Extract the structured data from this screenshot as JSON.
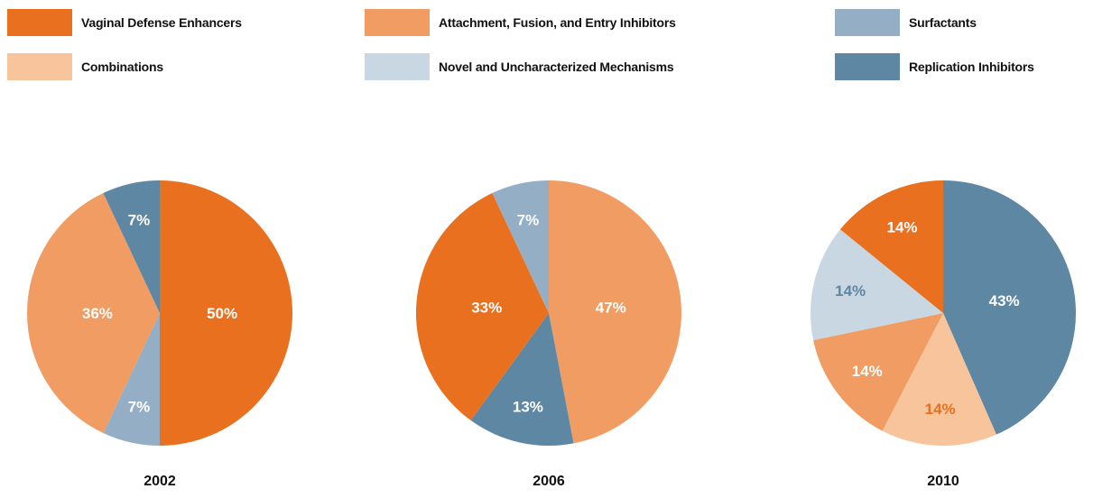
{
  "chart_data": {
    "type": "pie",
    "legend": [
      {
        "key": "vde",
        "label": "Vaginal Defense Enhancers",
        "color": "#E8701E"
      },
      {
        "key": "afe",
        "label": "Attachment, Fusion, and Entry Inhibitors",
        "color": "#F09C62"
      },
      {
        "key": "surf",
        "label": "Surfactants",
        "color": "#94AFC5"
      },
      {
        "key": "comb",
        "label": "Combinations",
        "color": "#F7C49C"
      },
      {
        "key": "novel",
        "label": "Novel and Uncharacterized Mechanisms",
        "color": "#C9D7E2"
      },
      {
        "key": "rep",
        "label": "Replication Inhibitors",
        "color": "#5E87A3"
      }
    ],
    "charts": [
      {
        "year": "2002",
        "slices": [
          {
            "key": "vde",
            "value": 50,
            "label": "50%",
            "label_color": "#ffffff"
          },
          {
            "key": "surf",
            "value": 7,
            "label": "7%",
            "label_color": "#ffffff"
          },
          {
            "key": "afe",
            "value": 36,
            "label": "36%",
            "label_color": "#ffffff"
          },
          {
            "key": "rep",
            "value": 7,
            "label": "7%",
            "label_color": "#ffffff"
          }
        ]
      },
      {
        "year": "2006",
        "slices": [
          {
            "key": "afe",
            "value": 47,
            "label": "47%",
            "label_color": "#ffffff"
          },
          {
            "key": "rep",
            "value": 13,
            "label": "13%",
            "label_color": "#ffffff"
          },
          {
            "key": "vde",
            "value": 33,
            "label": "33%",
            "label_color": "#ffffff"
          },
          {
            "key": "surf",
            "value": 7,
            "label": "7%",
            "label_color": "#ffffff"
          }
        ]
      },
      {
        "year": "2010",
        "slices": [
          {
            "key": "rep",
            "value": 43,
            "label": "43%",
            "label_color": "#ffffff"
          },
          {
            "key": "comb",
            "value": 14,
            "label": "14%",
            "label_color": "#E8701E"
          },
          {
            "key": "afe",
            "value": 14,
            "label": "14%",
            "label_color": "#ffffff"
          },
          {
            "key": "novel",
            "value": 14,
            "label": "14%",
            "label_color": "#5E87A3"
          },
          {
            "key": "vde",
            "value": 14,
            "label": "14%",
            "label_color": "#ffffff"
          }
        ]
      }
    ]
  }
}
